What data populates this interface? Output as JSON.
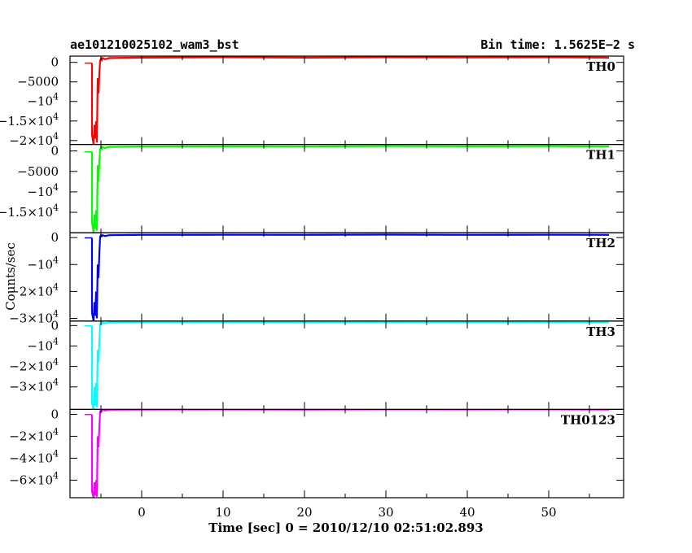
{
  "header": {
    "title": "ae101210025102_wam3_bst",
    "bin_time": "Bin time: 1.5625E−2 s"
  },
  "chart_data": {
    "type": "line",
    "xlabel": "Time [sec] 0 = 2010/12/10 02:51:02.893",
    "ylabel": "Counts/sec",
    "xlim": [
      -8.8,
      59.2
    ],
    "x_ticks": [
      0,
      10,
      20,
      30,
      40,
      50
    ],
    "x_tick_labels": [
      "0",
      "10",
      "20",
      "30",
      "40",
      "50"
    ],
    "panels": [
      {
        "name": "TH0",
        "color": "#ff0000",
        "ylim": [
          -21000,
          1600
        ],
        "y_ticks": [
          0,
          -5000,
          -10000,
          -15000,
          -20000
        ],
        "y_tick_labels": [
          {
            "mant": "0",
            "exp": ""
          },
          {
            "mant": "−5000",
            "exp": ""
          },
          {
            "mant": "−10",
            "exp": "4"
          },
          {
            "mant": "−1.5×10",
            "exp": "4"
          },
          {
            "mant": "−2×10",
            "exp": "4"
          }
        ],
        "series": [
          {
            "x": [
              -7.0,
              -6.1
            ],
            "y": [
              -200,
              -200
            ]
          },
          {
            "x": [
              -6.1,
              -6.1,
              -5.9,
              -5.8,
              -5.7,
              -5.6,
              -5.5,
              -5.4,
              -5.3,
              -5.2,
              -5.1,
              -5.0,
              -4.9,
              -4.8,
              -4.5,
              -4.0,
              0,
              10,
              20,
              30,
              40,
              50,
              57.4
            ],
            "y": [
              -200,
              -18500,
              -21000,
              -16000,
              -19500,
              -15000,
              -20500,
              -4000,
              -8000,
              -3000,
              400,
              1000,
              600,
              1100,
              800,
              1100,
              1200,
              1300,
              1200,
              1300,
              1250,
              1300,
              1200
            ]
          }
        ]
      },
      {
        "name": "TH1",
        "color": "#00ff00",
        "ylim": [
          -20000,
          1600
        ],
        "y_ticks": [
          0,
          -5000,
          -10000,
          -15000
        ],
        "y_tick_labels": [
          {
            "mant": "0",
            "exp": ""
          },
          {
            "mant": "−5000",
            "exp": ""
          },
          {
            "mant": "−10",
            "exp": "4"
          },
          {
            "mant": "−1.5×10",
            "exp": "4"
          }
        ],
        "series": [
          {
            "x": [
              -7.0,
              -6.1
            ],
            "y": [
              -200,
              -200
            ]
          },
          {
            "x": [
              -6.1,
              -6.1,
              -5.9,
              -5.8,
              -5.7,
              -5.6,
              -5.5,
              -5.4,
              -5.3,
              -5.2,
              -5.1,
              -5.0,
              -4.9,
              -4.8,
              -4.5,
              -4.0,
              0,
              10,
              20,
              30,
              40,
              50,
              57.4
            ],
            "y": [
              -200,
              -17500,
              -20000,
              -15500,
              -19000,
              -14500,
              -19500,
              -3500,
              -7500,
              -2500,
              300,
              900,
              500,
              1000,
              700,
              1000,
              1100,
              1150,
              1100,
              1200,
              1150,
              1200,
              1100
            ]
          }
        ]
      },
      {
        "name": "TH2",
        "color": "#0000ff",
        "ylim": [
          -31000,
          1800
        ],
        "y_ticks": [
          0,
          -10000,
          -20000,
          -30000
        ],
        "y_tick_labels": [
          {
            "mant": "0",
            "exp": ""
          },
          {
            "mant": "−10",
            "exp": "4"
          },
          {
            "mant": "−2×10",
            "exp": "4"
          },
          {
            "mant": "−3×10",
            "exp": "4"
          }
        ],
        "series": [
          {
            "x": [
              -7.0,
              -6.1
            ],
            "y": [
              -100,
              -100
            ]
          },
          {
            "x": [
              -6.1,
              -6.1,
              -5.9,
              -5.8,
              -5.7,
              -5.6,
              -5.5,
              -5.4,
              -5.3,
              -5.2,
              -5.1,
              -5.0,
              -4.9,
              -4.8,
              -4.5,
              -4.0,
              0,
              10,
              20,
              30,
              40,
              50,
              57.4
            ],
            "y": [
              -100,
              -28000,
              -31000,
              -24000,
              -29000,
              -20000,
              -30000,
              -10000,
              -15000,
              -6000,
              300,
              900,
              500,
              900,
              600,
              900,
              1000,
              1050,
              1000,
              1100,
              1000,
              1050,
              1000
            ]
          }
        ]
      },
      {
        "name": "TH3",
        "color": "#00ffff",
        "ylim": [
          -41000,
          2200
        ],
        "y_ticks": [
          0,
          -10000,
          -20000,
          -30000
        ],
        "y_tick_labels": [
          {
            "mant": "0",
            "exp": ""
          },
          {
            "mant": "−10",
            "exp": "4"
          },
          {
            "mant": "−2×10",
            "exp": "4"
          },
          {
            "mant": "−3×10",
            "exp": "4"
          }
        ],
        "series": [
          {
            "x": [
              -7.0,
              -6.1
            ],
            "y": [
              -100,
              -100
            ]
          },
          {
            "x": [
              -6.1,
              -6.1,
              -5.9,
              -5.8,
              -5.7,
              -5.6,
              -5.5,
              -5.4,
              -5.3,
              -5.2,
              -5.1,
              -5.0,
              -4.9,
              -4.8,
              -4.5,
              -4.0,
              0,
              10,
              20,
              30,
              40,
              50,
              57.4
            ],
            "y": [
              -100,
              -38000,
              -41000,
              -30000,
              -39000,
              -28000,
              -40000,
              -12000,
              -18000,
              -8000,
              600,
              1400,
              900,
              1500,
              1100,
              1500,
              1600,
              1600,
              1550,
              1650,
              1600,
              1650,
              1550
            ]
          }
        ]
      },
      {
        "name": "TH0123",
        "color": "#ff00ff",
        "ylim": [
          -76000,
          4500
        ],
        "y_ticks": [
          0,
          -20000,
          -40000,
          -60000
        ],
        "y_tick_labels": [
          {
            "mant": "0",
            "exp": ""
          },
          {
            "mant": "−2×10",
            "exp": "4"
          },
          {
            "mant": "−4×10",
            "exp": "4"
          },
          {
            "mant": "−6×10",
            "exp": "4"
          }
        ],
        "series": [
          {
            "x": [
              -7.0,
              -6.1
            ],
            "y": [
              -200,
              -200
            ]
          },
          {
            "x": [
              -6.1,
              -6.1,
              -5.9,
              -5.8,
              -5.7,
              -5.6,
              -5.5,
              -5.4,
              -5.3,
              -5.2,
              -5.1,
              -5.0,
              -4.9,
              -4.8,
              -4.5,
              -4.0,
              0,
              10,
              20,
              30,
              40,
              50,
              57.4
            ],
            "y": [
              -200,
              -70000,
              -76000,
              -62000,
              -74000,
              -60000,
              -75000,
              -20000,
              -30000,
              -12000,
              2500,
              4000,
              3000,
              4200,
              3500,
              4200,
              4300,
              4400,
              4300,
              4500,
              4400,
              4500,
              4300
            ]
          }
        ]
      }
    ]
  }
}
